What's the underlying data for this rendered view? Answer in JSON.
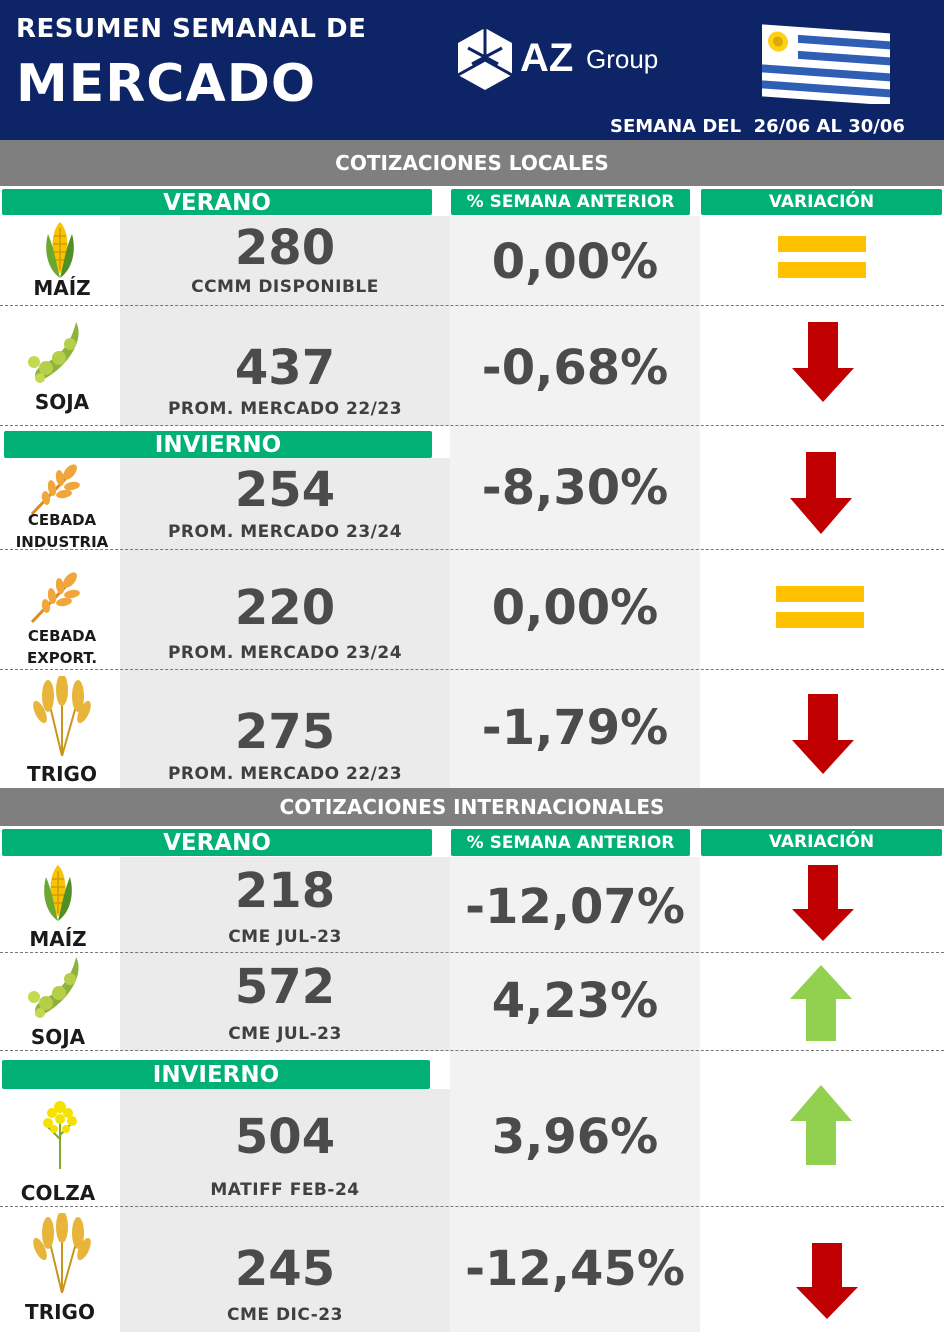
{
  "header": {
    "title_line1": "RESUMEN SEMANAL DE",
    "title_line2": "MERCADO",
    "logo_main": "AZ",
    "logo_sub": "Group",
    "week": "SEMANA DEL  26/06 AL 30/06"
  },
  "colors": {
    "header_bg": "#0d2466",
    "section_bg": "#7f7f7f",
    "pill_bg": "#00b074",
    "down": "#c00000",
    "up": "#92d050",
    "equal": "#ffc000"
  },
  "local": {
    "section_title": "COTIZACIONES LOCALES",
    "verano_label": "VERANO",
    "pct_header": "% SEMANA ANTERIOR",
    "var_header": "VARIACIÓN",
    "invierno_label": "INVIERNO",
    "rows": [
      {
        "name_l1": "MAÍZ",
        "name_l2": "",
        "icon": "corn-icon",
        "value": "280",
        "ref": "CCMM DISPONIBLE",
        "pct": "0,00%",
        "trend": "equal"
      },
      {
        "name_l1": "SOJA",
        "name_l2": "",
        "icon": "soybean-icon",
        "value": "437",
        "ref": "PROM. MERCADO 22/23",
        "pct": "-0,68%",
        "trend": "down"
      },
      {
        "name_l1": "CEBADA",
        "name_l2": "INDUSTRIA",
        "icon": "barley-icon",
        "value": "254",
        "ref": "PROM. MERCADO 23/24",
        "pct": "-8,30%",
        "trend": "down"
      },
      {
        "name_l1": "CEBADA",
        "name_l2": "EXPORT.",
        "icon": "barley-icon",
        "value": "220",
        "ref": "PROM. MERCADO 23/24",
        "pct": "0,00%",
        "trend": "equal"
      },
      {
        "name_l1": "TRIGO",
        "name_l2": "",
        "icon": "wheat-icon",
        "value": "275",
        "ref": "PROM. MERCADO 22/23",
        "pct": "-1,79%",
        "trend": "down"
      }
    ]
  },
  "international": {
    "section_title": "COTIZACIONES INTERNACIONALES",
    "verano_label": "VERANO",
    "pct_header": "% SEMANA ANTERIOR",
    "var_header": "VARIACIÓN",
    "invierno_label": "INVIERNO",
    "rows": [
      {
        "name_l1": "MAÍZ",
        "name_l2": "",
        "icon": "corn-icon",
        "value": "218",
        "ref": "CME JUL-23",
        "pct": "-12,07%",
        "trend": "down"
      },
      {
        "name_l1": "SOJA",
        "name_l2": "",
        "icon": "soybean-icon",
        "value": "572",
        "ref": "CME JUL-23",
        "pct": "4,23%",
        "trend": "up"
      },
      {
        "name_l1": "COLZA",
        "name_l2": "",
        "icon": "rapeseed-icon",
        "value": "504",
        "ref": "MATIFF FEB-24",
        "pct": "3,96%",
        "trend": "up"
      },
      {
        "name_l1": "TRIGO",
        "name_l2": "",
        "icon": "wheat-icon",
        "value": "245",
        "ref": "CME DIC-23",
        "pct": "-12,45%",
        "trend": "down"
      }
    ]
  }
}
